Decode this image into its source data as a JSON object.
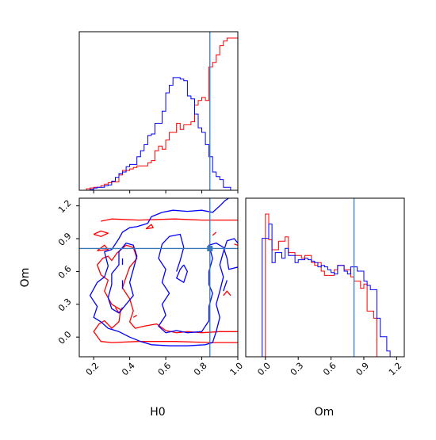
{
  "chart_data": {
    "type": "corner",
    "colors": {
      "series_a": "#ff0000",
      "series_b": "#0000ff",
      "truth": "#3b78b8"
    },
    "parameters": [
      "H0",
      "Om"
    ],
    "truth": {
      "H0": 0.845,
      "Om": 0.81
    },
    "axes": {
      "H0": {
        "label": "H0",
        "range": [
          0.12,
          1.0
        ],
        "ticks": [
          0.2,
          0.4,
          0.6,
          0.8,
          1.0
        ],
        "tick_labels": [
          "0.2",
          "0.4",
          "0.6",
          "0.8",
          "1.0"
        ]
      },
      "Om": {
        "label": "Om",
        "range": [
          -0.18,
          1.27
        ],
        "ticks": [
          0.0,
          0.3,
          0.6,
          0.9,
          1.2
        ],
        "tick_labels": [
          "0.0",
          "0.3",
          "0.6",
          "0.9",
          "1.2"
        ]
      }
    },
    "hist_H0": {
      "bins": [
        0.12,
        0.16,
        0.18,
        0.2,
        0.22,
        0.24,
        0.26,
        0.28,
        0.3,
        0.32,
        0.34,
        0.36,
        0.38,
        0.4,
        0.42,
        0.44,
        0.46,
        0.48,
        0.5,
        0.52,
        0.54,
        0.56,
        0.58,
        0.6,
        0.62,
        0.64,
        0.66,
        0.68,
        0.7,
        0.72,
        0.74,
        0.76,
        0.78,
        0.8,
        0.82,
        0.84,
        0.86,
        0.88,
        0.9,
        0.92,
        0.94,
        0.96,
        1.0
      ],
      "series": [
        {
          "color": "red",
          "values": [
            0.0,
            1.0,
            1.5,
            2.0,
            2.0,
            3.0,
            4.0,
            5.0,
            5.5,
            5.5,
            10.0,
            13.0,
            13.0,
            14.0,
            15.0,
            16.0,
            16.0,
            16.0,
            18.0,
            19.5,
            26.0,
            29.0,
            27.0,
            33.0,
            38.0,
            38.0,
            44.0,
            40.0,
            43.0,
            43.0,
            45.0,
            56.0,
            59.0,
            61.0,
            59.0,
            81.0,
            84.0,
            89.0,
            95.0,
            98.0,
            100.0,
            100.0
          ]
        },
        {
          "color": "blue",
          "values": [
            0.0,
            0.0,
            0.5,
            1.5,
            2.0,
            2.0,
            3.0,
            3.5,
            6.0,
            8.5,
            11.0,
            12.0,
            15.5,
            17.0,
            17.0,
            22.0,
            26.0,
            30.0,
            36.0,
            37.0,
            44.0,
            44.0,
            52.0,
            64.0,
            69.0,
            74.0,
            74.0,
            73.0,
            72.0,
            62.0,
            60.0,
            50.0,
            41.0,
            38.0,
            30.0,
            22.0,
            12.0,
            9.0,
            7.0,
            2.0,
            2.0,
            0.0
          ]
        }
      ]
    },
    "hist_Om": {
      "bins": [
        -0.09,
        -0.03,
        0.0,
        0.03,
        0.06,
        0.09,
        0.12,
        0.15,
        0.18,
        0.21,
        0.24,
        0.27,
        0.3,
        0.33,
        0.36,
        0.39,
        0.42,
        0.45,
        0.48,
        0.51,
        0.54,
        0.57,
        0.6,
        0.63,
        0.66,
        0.69,
        0.72,
        0.75,
        0.78,
        0.81,
        0.84,
        0.87,
        0.9,
        0.93,
        0.96,
        0.99,
        1.02,
        1.05,
        1.08,
        1.11,
        1.14,
        1.17
      ],
      "series": [
        {
          "color": "red",
          "values": [
            0.0,
            0.0,
            100.0,
            82.0,
            75.0,
            75.0,
            81.0,
            81.0,
            84.0,
            73.0,
            73.0,
            71.0,
            71.0,
            69.0,
            71.0,
            71.0,
            66.0,
            64.0,
            66.0,
            60.0,
            57.0,
            57.0,
            57.0,
            61.0,
            64.0,
            64.0,
            61.0,
            61.0,
            56.0,
            53.0,
            53.0,
            48.0,
            51.0,
            32.0,
            32.0,
            27.0,
            0.0,
            0.0,
            0.0,
            0.0,
            0.0
          ]
        },
        {
          "color": "blue",
          "values": [
            0.0,
            83.0,
            83.0,
            93.0,
            66.0,
            73.0,
            73.0,
            69.0,
            76.0,
            71.0,
            71.0,
            66.0,
            68.0,
            68.0,
            69.0,
            68.0,
            67.0,
            66.0,
            63.0,
            64.0,
            63.0,
            61.0,
            59.0,
            58.0,
            64.0,
            64.0,
            60.0,
            58.0,
            63.0,
            63.0,
            60.0,
            60.0,
            53.0,
            50.0,
            47.0,
            47.0,
            27.0,
            14.0,
            14.0,
            4.0,
            0.0
          ]
        }
      ]
    },
    "contours": [
      {
        "color": "red",
        "paths": [
          [
            [
              0.24,
              1.06
            ],
            [
              0.3,
              1.08
            ],
            [
              0.45,
              1.07
            ],
            [
              0.65,
              1.08
            ],
            [
              0.8,
              1.07
            ],
            [
              1.0,
              1.07
            ]
          ],
          [
            [
              1.0,
              -0.05
            ],
            [
              0.85,
              -0.05
            ],
            [
              0.65,
              -0.04
            ],
            [
              0.45,
              -0.04
            ],
            [
              0.3,
              -0.05
            ],
            [
              0.24,
              -0.04
            ],
            [
              0.2,
              0.05
            ],
            [
              0.23,
              0.12
            ],
            [
              0.26,
              0.15
            ],
            [
              0.3,
              0.08
            ],
            [
              0.34,
              0.14
            ],
            [
              0.35,
              0.25
            ],
            [
              0.3,
              0.3
            ],
            [
              0.26,
              0.42
            ],
            [
              0.28,
              0.52
            ],
            [
              0.24,
              0.57
            ],
            [
              0.22,
              0.66
            ],
            [
              0.25,
              0.72
            ],
            [
              0.28,
              0.74
            ],
            [
              0.3,
              0.7
            ],
            [
              0.33,
              0.77
            ],
            [
              0.38,
              0.84
            ],
            [
              0.42,
              0.82
            ],
            [
              0.44,
              0.72
            ],
            [
              0.4,
              0.64
            ],
            [
              0.38,
              0.55
            ],
            [
              0.36,
              0.45
            ],
            [
              0.4,
              0.35
            ],
            [
              0.42,
              0.24
            ],
            [
              0.4,
              0.14
            ],
            [
              0.43,
              0.08
            ],
            [
              0.48,
              0.1
            ],
            [
              0.55,
              0.12
            ],
            [
              0.6,
              0.06
            ],
            [
              0.66,
              0.04
            ],
            [
              0.72,
              0.05
            ],
            [
              0.8,
              0.04
            ],
            [
              0.9,
              0.05
            ],
            [
              1.0,
              0.05
            ]
          ],
          [
            [
              0.2,
              0.94
            ],
            [
              0.24,
              0.92
            ],
            [
              0.28,
              0.95
            ],
            [
              0.24,
              0.97
            ],
            [
              0.2,
              0.94
            ]
          ],
          [
            [
              0.22,
              0.79
            ],
            [
              0.28,
              0.8
            ],
            [
              0.26,
              0.84
            ],
            [
              0.22,
              0.79
            ]
          ],
          [
            [
              0.49,
              0.99
            ],
            [
              0.53,
              1.0
            ],
            [
              0.52,
              1.03
            ],
            [
              0.49,
              0.99
            ]
          ],
          [
            [
              0.98,
              0.85
            ],
            [
              1.0,
              0.84
            ]
          ],
          [
            [
              0.92,
              0.38
            ],
            [
              0.94,
              0.42
            ],
            [
              0.96,
              0.38
            ]
          ],
          [
            [
              0.32,
              0.27
            ],
            [
              0.34,
              0.22
            ],
            [
              0.36,
              0.27
            ]
          ],
          [
            [
              0.42,
              0.18
            ],
            [
              0.44,
              0.2
            ]
          ],
          [
            [
              0.86,
              0.93
            ],
            [
              0.88,
              0.96
            ]
          ]
        ]
      },
      {
        "color": "blue",
        "paths": [
          [
            [
              0.58,
              1.14
            ],
            [
              0.64,
              1.16
            ],
            [
              0.72,
              1.15
            ],
            [
              0.8,
              1.16
            ],
            [
              0.86,
              1.14
            ],
            [
              0.9,
              1.2
            ],
            [
              0.93,
              1.25
            ],
            [
              0.95,
              1.27
            ]
          ],
          [
            [
              0.58,
              1.14
            ],
            [
              0.52,
              1.1
            ],
            [
              0.5,
              1.04
            ],
            [
              0.44,
              1.01
            ],
            [
              0.4,
              1.0
            ],
            [
              0.36,
              0.96
            ],
            [
              0.34,
              0.9
            ],
            [
              0.3,
              0.8
            ],
            [
              0.26,
              0.78
            ],
            [
              0.28,
              0.65
            ],
            [
              0.26,
              0.55
            ],
            [
              0.22,
              0.5
            ],
            [
              0.18,
              0.38
            ],
            [
              0.22,
              0.28
            ],
            [
              0.2,
              0.18
            ],
            [
              0.24,
              0.14
            ],
            [
              0.28,
              0.08
            ],
            [
              0.34,
              0.05
            ],
            [
              0.4,
              0.0
            ],
            [
              0.46,
              -0.04
            ],
            [
              0.52,
              -0.07
            ],
            [
              0.62,
              -0.08
            ],
            [
              0.72,
              -0.08
            ],
            [
              0.82,
              -0.07
            ],
            [
              0.86,
              -0.05
            ],
            [
              0.88,
              0.05
            ],
            [
              0.9,
              0.18
            ],
            [
              0.88,
              0.3
            ],
            [
              0.9,
              0.42
            ],
            [
              0.92,
              0.55
            ],
            [
              0.9,
              0.66
            ],
            [
              0.92,
              0.78
            ],
            [
              0.94,
              0.88
            ],
            [
              0.98,
              0.9
            ],
            [
              1.0,
              0.86
            ]
          ],
          [
            [
              1.0,
              0.64
            ],
            [
              0.95,
              0.62
            ],
            [
              0.94,
              0.72
            ],
            [
              0.92,
              0.82
            ],
            [
              0.88,
              0.86
            ],
            [
              0.84,
              0.84
            ],
            [
              0.86,
              0.72
            ],
            [
              0.84,
              0.6
            ],
            [
              0.84,
              0.48
            ],
            [
              0.86,
              0.4
            ],
            [
              0.84,
              0.28
            ],
            [
              0.84,
              0.15
            ],
            [
              0.8,
              0.05
            ],
            [
              0.72,
              0.04
            ],
            [
              0.66,
              0.06
            ],
            [
              0.6,
              0.04
            ],
            [
              0.56,
              0.1
            ],
            [
              0.6,
              0.2
            ],
            [
              0.58,
              0.3
            ],
            [
              0.62,
              0.4
            ],
            [
              0.58,
              0.5
            ],
            [
              0.6,
              0.62
            ],
            [
              0.56,
              0.72
            ],
            [
              0.58,
              0.85
            ],
            [
              0.62,
              0.92
            ],
            [
              0.68,
              0.94
            ],
            [
              0.7,
              0.82
            ],
            [
              0.68,
              0.7
            ],
            [
              0.66,
              0.6
            ]
          ],
          [
            [
              0.7,
              0.66
            ],
            [
              0.72,
              0.6
            ],
            [
              0.7,
              0.5
            ],
            [
              0.66,
              0.54
            ],
            [
              0.68,
              0.62
            ],
            [
              0.7,
              0.66
            ]
          ],
          [
            [
              0.38,
              0.86
            ],
            [
              0.42,
              0.84
            ],
            [
              0.44,
              0.74
            ],
            [
              0.42,
              0.62
            ],
            [
              0.4,
              0.5
            ],
            [
              0.42,
              0.38
            ],
            [
              0.38,
              0.3
            ],
            [
              0.34,
              0.22
            ],
            [
              0.3,
              0.26
            ],
            [
              0.28,
              0.36
            ],
            [
              0.3,
              0.48
            ],
            [
              0.3,
              0.58
            ],
            [
              0.34,
              0.66
            ],
            [
              0.34,
              0.78
            ],
            [
              0.38,
              0.86
            ]
          ],
          [
            [
              0.36,
              0.44
            ],
            [
              0.36,
              0.52
            ]
          ],
          [
            [
              0.36,
              0.66
            ],
            [
              0.36,
              0.72
            ]
          ],
          [
            [
              0.92,
              0.42
            ],
            [
              0.94,
              0.52
            ]
          ]
        ]
      }
    ]
  }
}
